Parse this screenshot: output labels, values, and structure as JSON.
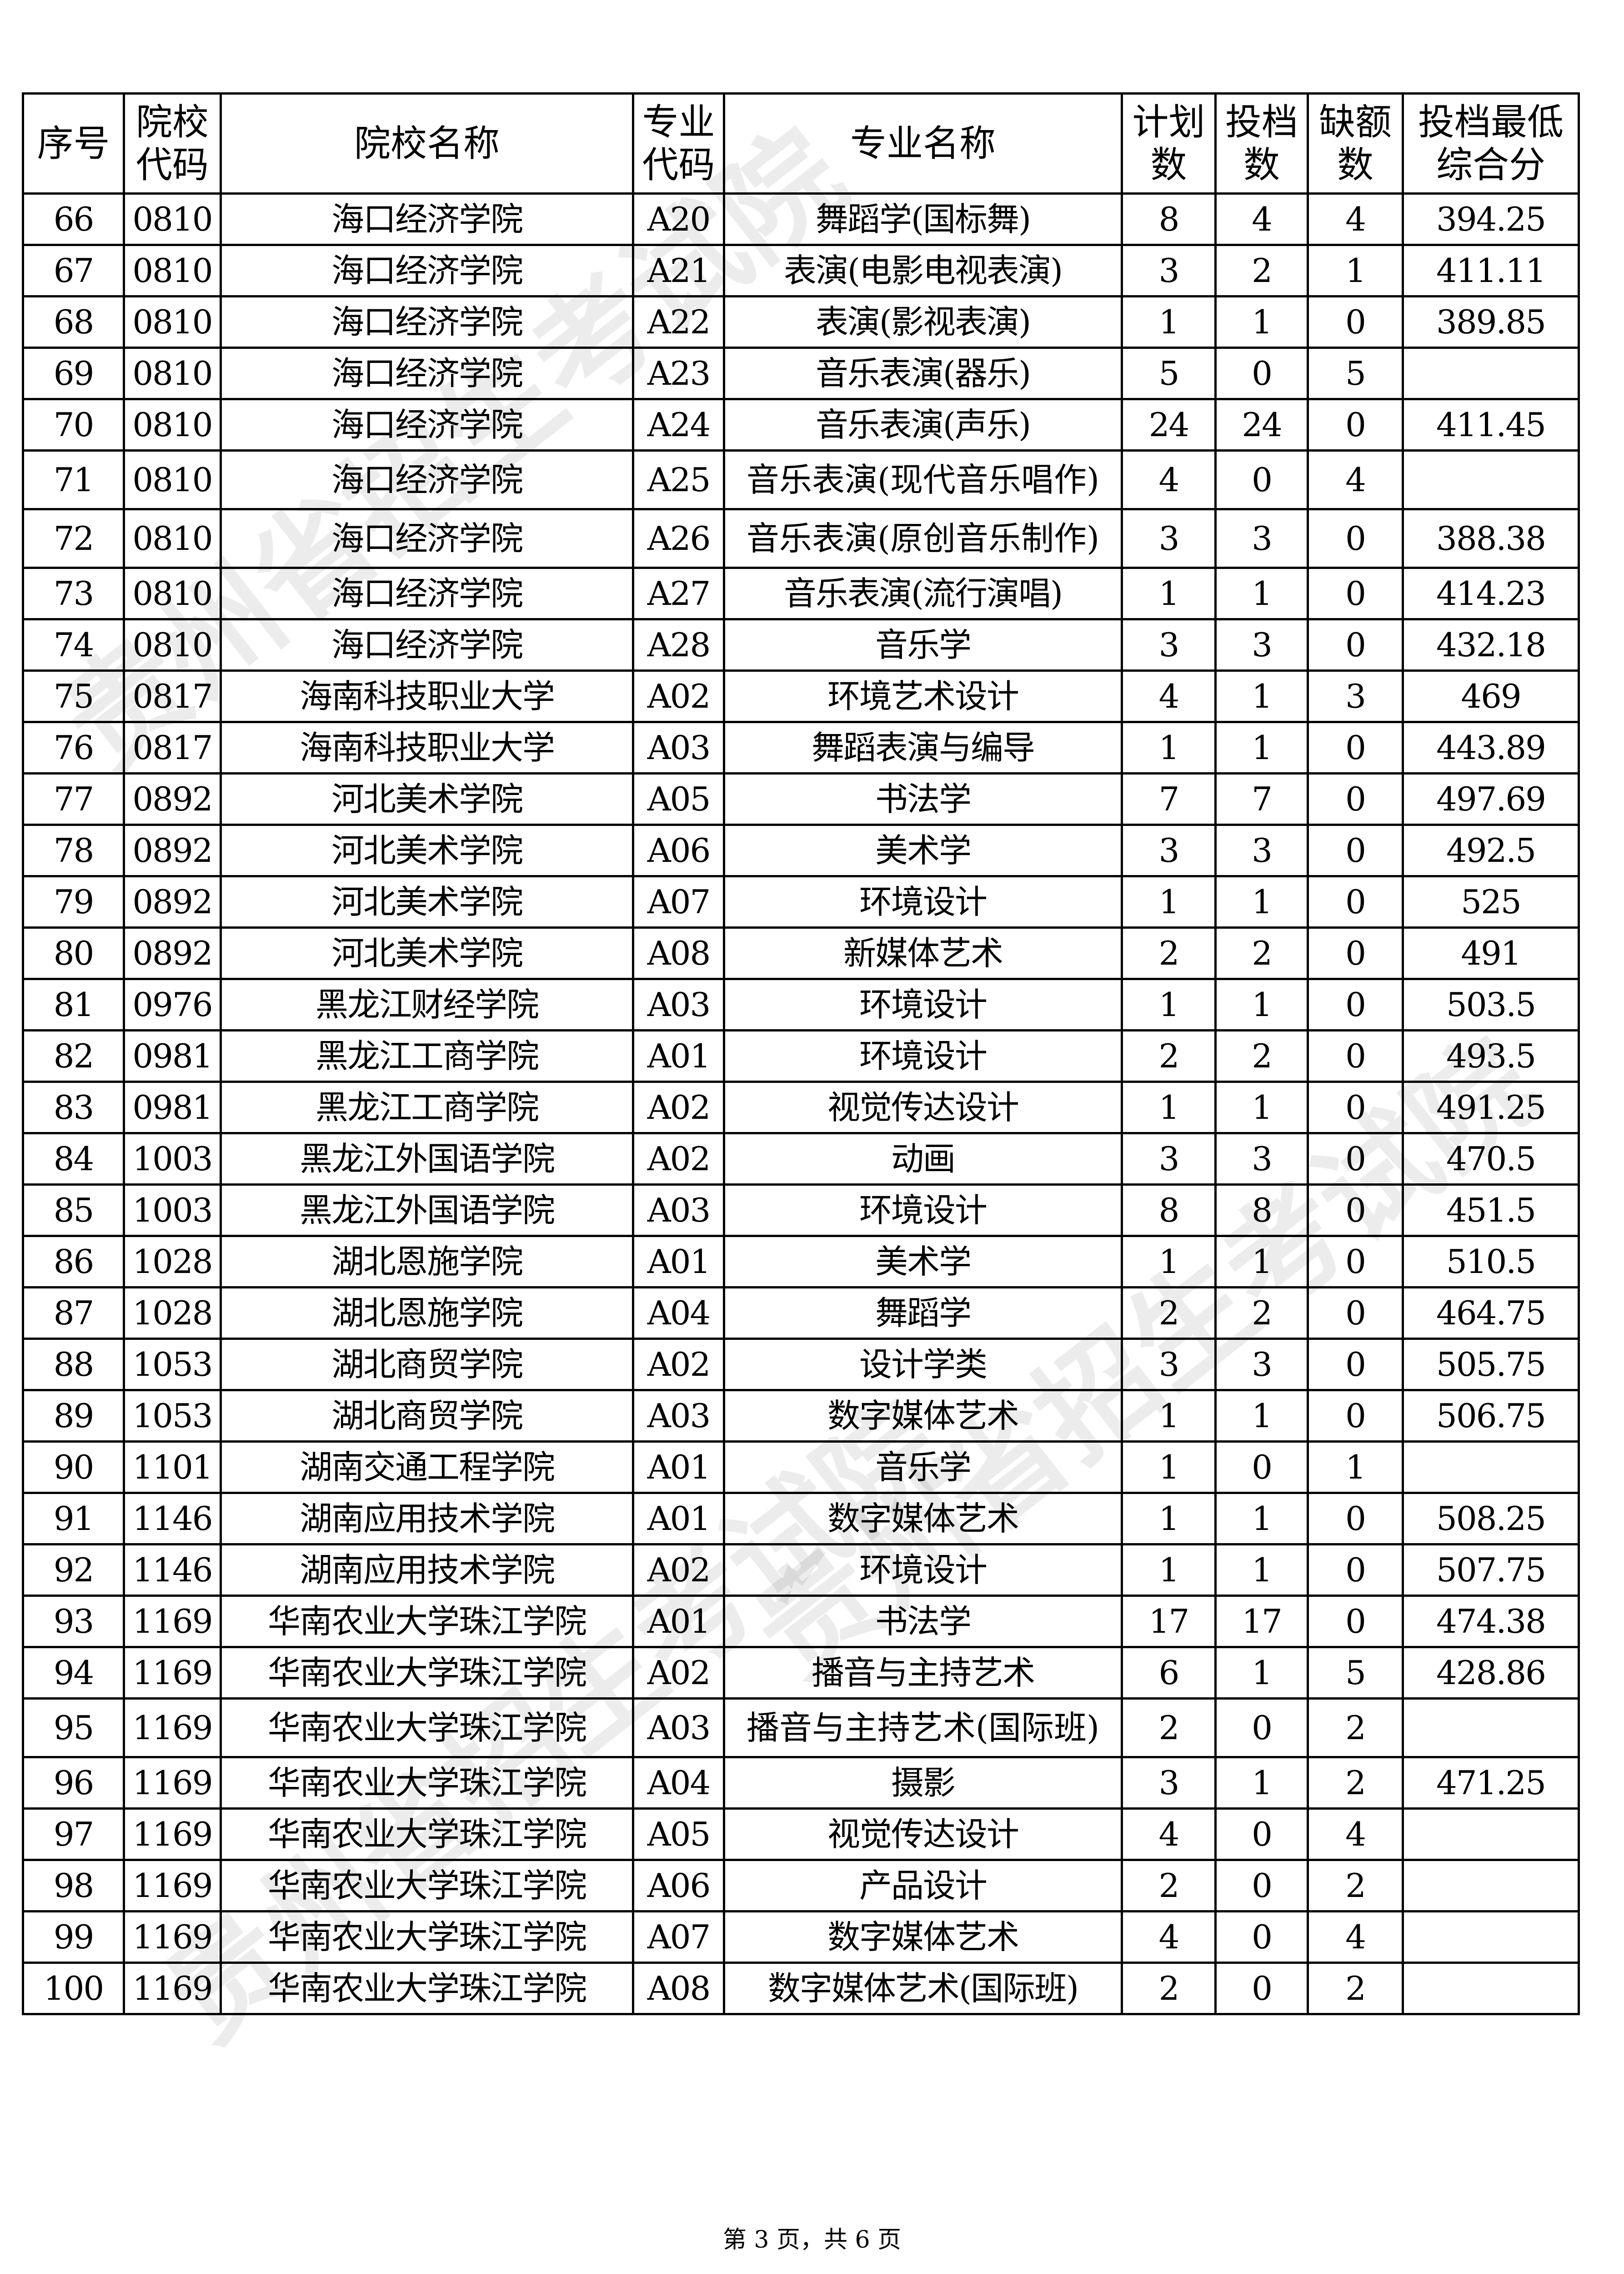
{
  "table": {
    "headers": [
      "序号",
      "院校代码",
      "院校名称",
      "专业代码",
      "专业名称",
      "计划数",
      "投档数",
      "缺额数",
      "投档最低综合分"
    ],
    "rows": [
      [
        "66",
        "0810",
        "海口经济学院",
        "A20",
        "舞蹈学(国标舞)",
        "8",
        "4",
        "4",
        "394.25"
      ],
      [
        "67",
        "0810",
        "海口经济学院",
        "A21",
        "表演(电影电视表演)",
        "3",
        "2",
        "1",
        "411.11"
      ],
      [
        "68",
        "0810",
        "海口经济学院",
        "A22",
        "表演(影视表演)",
        "1",
        "1",
        "0",
        "389.85"
      ],
      [
        "69",
        "0810",
        "海口经济学院",
        "A23",
        "音乐表演(器乐)",
        "5",
        "0",
        "5",
        ""
      ],
      [
        "70",
        "0810",
        "海口经济学院",
        "A24",
        "音乐表演(声乐)",
        "24",
        "24",
        "0",
        "411.45"
      ],
      [
        "71",
        "0810",
        "海口经济学院",
        "A25",
        "音乐表演(现代音乐唱作)",
        "4",
        "0",
        "4",
        ""
      ],
      [
        "72",
        "0810",
        "海口经济学院",
        "A26",
        "音乐表演(原创音乐制作)",
        "3",
        "3",
        "0",
        "388.38"
      ],
      [
        "73",
        "0810",
        "海口经济学院",
        "A27",
        "音乐表演(流行演唱)",
        "1",
        "1",
        "0",
        "414.23"
      ],
      [
        "74",
        "0810",
        "海口经济学院",
        "A28",
        "音乐学",
        "3",
        "3",
        "0",
        "432.18"
      ],
      [
        "75",
        "0817",
        "海南科技职业大学",
        "A02",
        "环境艺术设计",
        "4",
        "1",
        "3",
        "469"
      ],
      [
        "76",
        "0817",
        "海南科技职业大学",
        "A03",
        "舞蹈表演与编导",
        "1",
        "1",
        "0",
        "443.89"
      ],
      [
        "77",
        "0892",
        "河北美术学院",
        "A05",
        "书法学",
        "7",
        "7",
        "0",
        "497.69"
      ],
      [
        "78",
        "0892",
        "河北美术学院",
        "A06",
        "美术学",
        "3",
        "3",
        "0",
        "492.5"
      ],
      [
        "79",
        "0892",
        "河北美术学院",
        "A07",
        "环境设计",
        "1",
        "1",
        "0",
        "525"
      ],
      [
        "80",
        "0892",
        "河北美术学院",
        "A08",
        "新媒体艺术",
        "2",
        "2",
        "0",
        "491"
      ],
      [
        "81",
        "0976",
        "黑龙江财经学院",
        "A03",
        "环境设计",
        "1",
        "1",
        "0",
        "503.5"
      ],
      [
        "82",
        "0981",
        "黑龙江工商学院",
        "A01",
        "环境设计",
        "2",
        "2",
        "0",
        "493.5"
      ],
      [
        "83",
        "0981",
        "黑龙江工商学院",
        "A02",
        "视觉传达设计",
        "1",
        "1",
        "0",
        "491.25"
      ],
      [
        "84",
        "1003",
        "黑龙江外国语学院",
        "A02",
        "动画",
        "3",
        "3",
        "0",
        "470.5"
      ],
      [
        "85",
        "1003",
        "黑龙江外国语学院",
        "A03",
        "环境设计",
        "8",
        "8",
        "0",
        "451.5"
      ],
      [
        "86",
        "1028",
        "湖北恩施学院",
        "A01",
        "美术学",
        "1",
        "1",
        "0",
        "510.5"
      ],
      [
        "87",
        "1028",
        "湖北恩施学院",
        "A04",
        "舞蹈学",
        "2",
        "2",
        "0",
        "464.75"
      ],
      [
        "88",
        "1053",
        "湖北商贸学院",
        "A02",
        "设计学类",
        "3",
        "3",
        "0",
        "505.75"
      ],
      [
        "89",
        "1053",
        "湖北商贸学院",
        "A03",
        "数字媒体艺术",
        "1",
        "1",
        "0",
        "506.75"
      ],
      [
        "90",
        "1101",
        "湖南交通工程学院",
        "A01",
        "音乐学",
        "1",
        "0",
        "1",
        ""
      ],
      [
        "91",
        "1146",
        "湖南应用技术学院",
        "A01",
        "数字媒体艺术",
        "1",
        "1",
        "0",
        "508.25"
      ],
      [
        "92",
        "1146",
        "湖南应用技术学院",
        "A02",
        "环境设计",
        "1",
        "1",
        "0",
        "507.75"
      ],
      [
        "93",
        "1169",
        "华南农业大学珠江学院",
        "A01",
        "书法学",
        "17",
        "17",
        "0",
        "474.38"
      ],
      [
        "94",
        "1169",
        "华南农业大学珠江学院",
        "A02",
        "播音与主持艺术",
        "6",
        "1",
        "5",
        "428.86"
      ],
      [
        "95",
        "1169",
        "华南农业大学珠江学院",
        "A03",
        "播音与主持艺术(国际班)",
        "2",
        "0",
        "2",
        ""
      ],
      [
        "96",
        "1169",
        "华南农业大学珠江学院",
        "A04",
        "摄影",
        "3",
        "1",
        "2",
        "471.25"
      ],
      [
        "97",
        "1169",
        "华南农业大学珠江学院",
        "A05",
        "视觉传达设计",
        "4",
        "0",
        "4",
        ""
      ],
      [
        "98",
        "1169",
        "华南农业大学珠江学院",
        "A06",
        "产品设计",
        "2",
        "0",
        "2",
        ""
      ],
      [
        "99",
        "1169",
        "华南农业大学珠江学院",
        "A07",
        "数字媒体艺术",
        "4",
        "0",
        "4",
        ""
      ],
      [
        "100",
        "1169",
        "华南农业大学珠江学院",
        "A08",
        "数字媒体艺术(国际班)",
        "2",
        "0",
        "2",
        ""
      ]
    ]
  },
  "watermark": "贵州省招生考试院",
  "footer": "第 3 页，共 6 页"
}
